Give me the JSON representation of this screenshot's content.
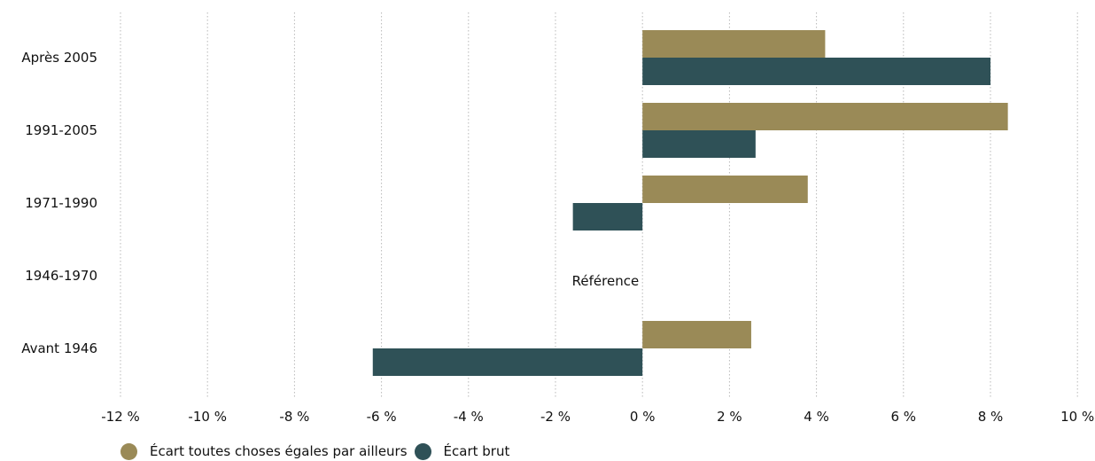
{
  "chart_data": {
    "type": "bar",
    "orientation": "horizontal",
    "categories": [
      "Après 2005",
      "1991-2005",
      "1971-1990",
      "1946-1970",
      "Avant 1946"
    ],
    "series": [
      {
        "name": "Écart toutes choses égales par ailleurs",
        "color": "#9a8a57",
        "values": [
          4.2,
          8.4,
          3.8,
          null,
          2.5
        ]
      },
      {
        "name": "Écart brut",
        "color": "#2f5157",
        "values": [
          8.0,
          2.6,
          -1.6,
          null,
          -6.2
        ]
      }
    ],
    "annotations": [
      {
        "category": "1946-1970",
        "text": "Référence"
      }
    ],
    "xlim": [
      -12,
      10
    ],
    "xticks": [
      -12,
      -10,
      -8,
      -6,
      -4,
      -2,
      0,
      2,
      4,
      6,
      8,
      10
    ],
    "xtick_labels": [
      "-12 %",
      "-10 %",
      "-8 %",
      "-6 %",
      "-4 %",
      "-2 %",
      "0 %",
      "2 %",
      "4 %",
      "6 %",
      "8 %",
      "10 %"
    ],
    "grid": "vertical dotted",
    "legend_position": "bottom-left"
  }
}
